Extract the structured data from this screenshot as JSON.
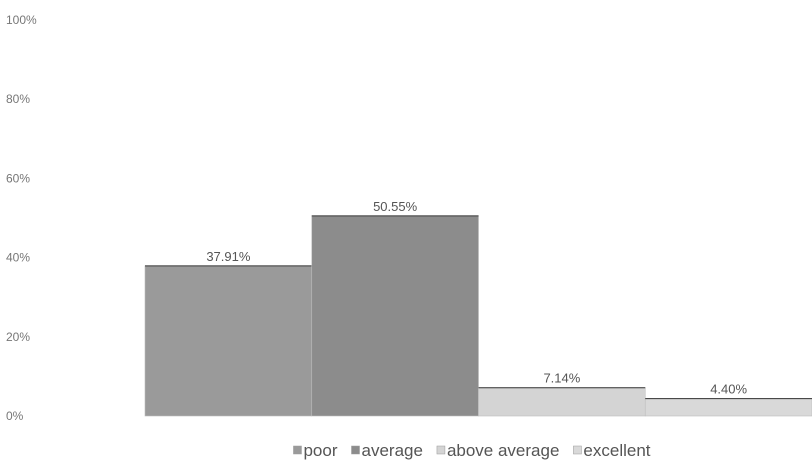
{
  "chart_data": {
    "type": "bar",
    "categories": [
      "poor",
      "average",
      "above average",
      "excellent"
    ],
    "values": [
      37.91,
      50.55,
      7.14,
      4.4
    ],
    "data_labels": [
      "37.91%",
      "50.55%",
      "7.14%",
      "4.40%"
    ],
    "y_ticks": [
      "0%",
      "20%",
      "40%",
      "60%",
      "80%",
      "100%"
    ],
    "ylim": [
      0,
      100
    ],
    "grid": false,
    "legend_position": "bottom",
    "legend": [
      "poor",
      "average",
      "above average",
      "excellent"
    ],
    "colors": [
      "#9a9a9a",
      "#8c8c8c",
      "#d4d4d4",
      "#d9d9d9"
    ]
  }
}
